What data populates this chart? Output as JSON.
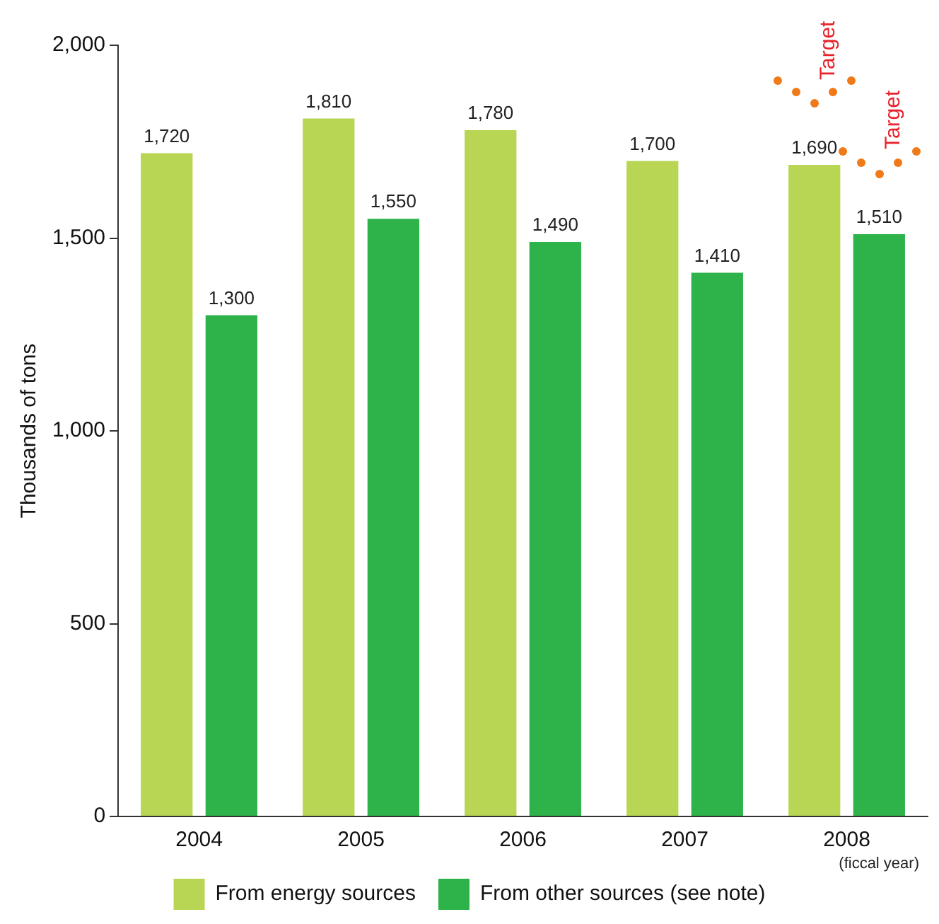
{
  "chart_data": {
    "type": "bar",
    "ylabel": "Thousands of tons",
    "xlabel": "(ficcal year)",
    "categories": [
      "2004",
      "2005",
      "2006",
      "2007",
      "2008"
    ],
    "series": [
      {
        "name": "From energy sources",
        "color": "#b8d654",
        "values": [
          1720,
          1810,
          1780,
          1700,
          1690
        ],
        "value_labels": [
          "1,720",
          "1,810",
          "1,780",
          "1,700",
          "1,690"
        ]
      },
      {
        "name": "From other sources (see note)",
        "color": "#2db34a",
        "values": [
          1300,
          1550,
          1490,
          1410,
          1510
        ],
        "value_labels": [
          "1,300",
          "1,550",
          "1,490",
          "1,410",
          "1,510"
        ]
      }
    ],
    "ylim": [
      0,
      2000
    ],
    "yticks": [
      {
        "value": 0,
        "label": "0"
      },
      {
        "value": 500,
        "label": "500"
      },
      {
        "value": 1000,
        "label": "1,000"
      },
      {
        "value": 1500,
        "label": "1,500"
      },
      {
        "value": 2000,
        "label": "2,000"
      }
    ],
    "grid": false,
    "legend": "bottom",
    "annotations": [
      "Target",
      "Target"
    ]
  }
}
